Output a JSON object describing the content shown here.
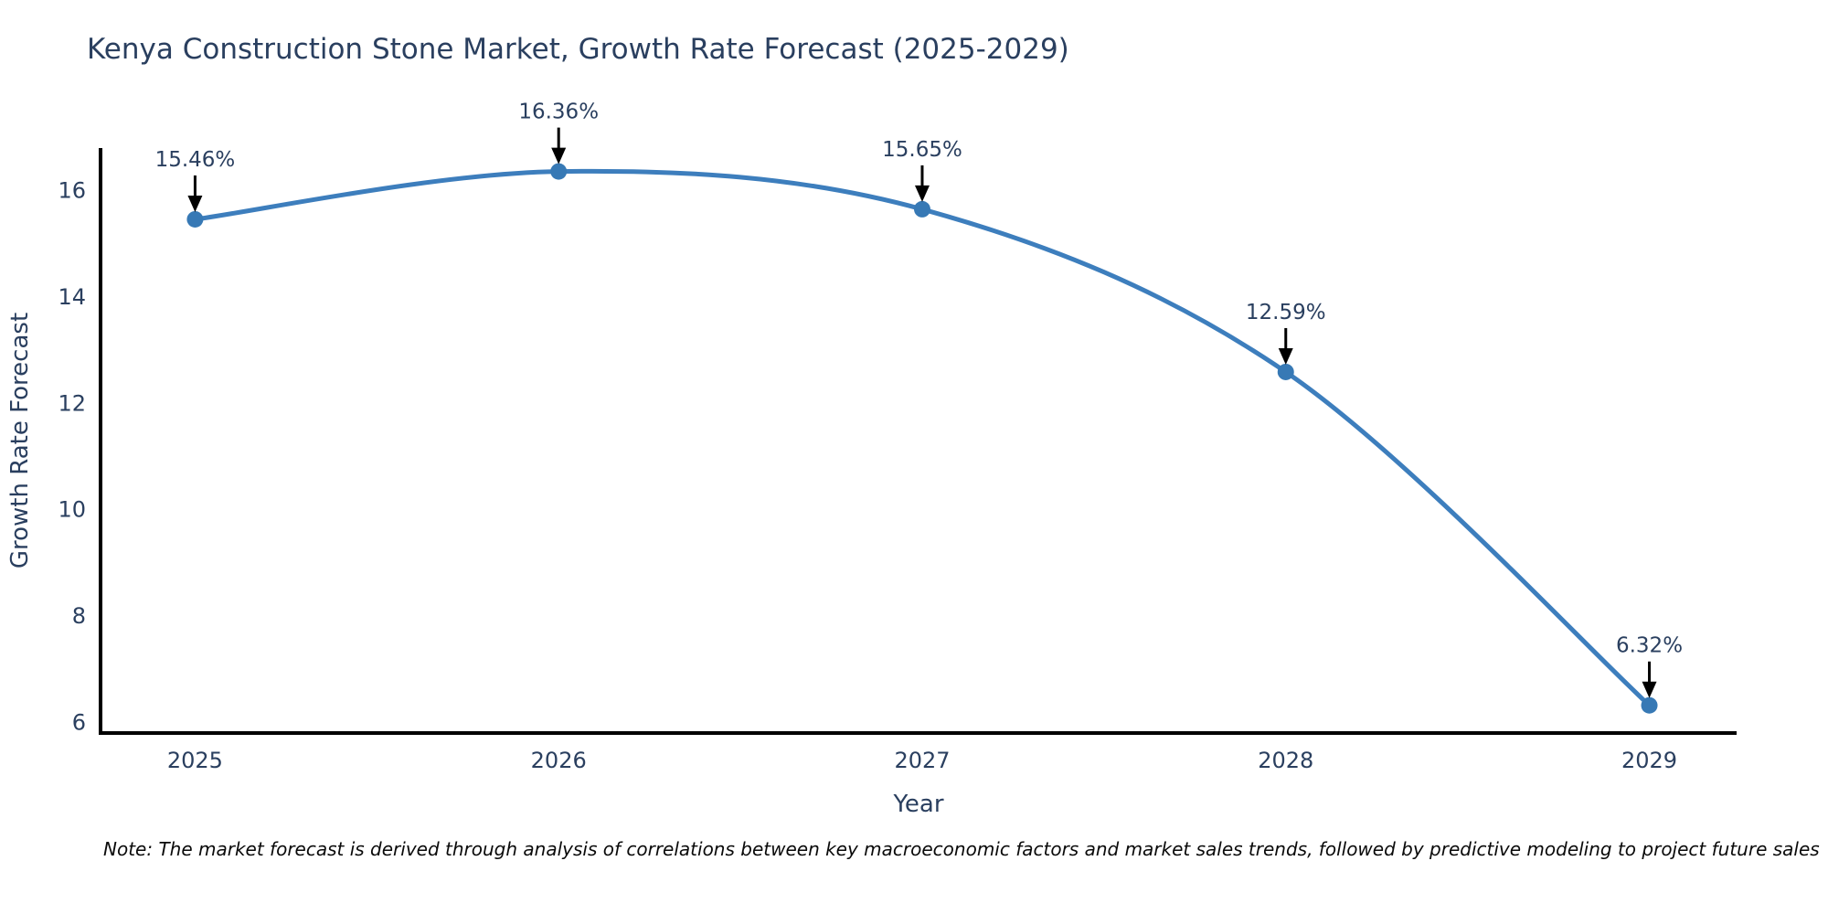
{
  "figure": {
    "background": "#ffffff"
  },
  "note": "Note: The market forecast is derived through analysis of correlations between key macroeconomic factors and market sales trends, followed by predictive modeling to project future sales",
  "chart_data": {
    "type": "line",
    "title": "Kenya Construction Stone Market, Growth Rate Forecast (2025-2029)",
    "xlabel": "Year",
    "ylabel": "Growth Rate Forecast",
    "x": [
      2025,
      2026,
      2027,
      2028,
      2029
    ],
    "x_tick_labels": [
      "2025",
      "2026",
      "2027",
      "2028",
      "2029"
    ],
    "values": [
      15.46,
      16.36,
      15.65,
      12.59,
      6.32
    ],
    "point_labels": [
      "15.46%",
      "16.36%",
      "15.65%",
      "12.59%",
      "6.32%"
    ],
    "yticks": [
      6,
      8,
      10,
      12,
      14,
      16
    ],
    "ylim": [
      5.8,
      16.8
    ],
    "xlim": [
      2024.74,
      2029.24
    ],
    "line_shape": "spline",
    "grid": false,
    "legend_position": "none",
    "annotations_have_arrows": true,
    "colors": {
      "line": "#3d7ebd",
      "marker": "#3779b5",
      "axis": "#000000",
      "text": "#2a3f5f",
      "annotation_text": "#2a3f5f",
      "annotation_arrow": "#000000",
      "note_text": "#0a0a0a"
    }
  }
}
